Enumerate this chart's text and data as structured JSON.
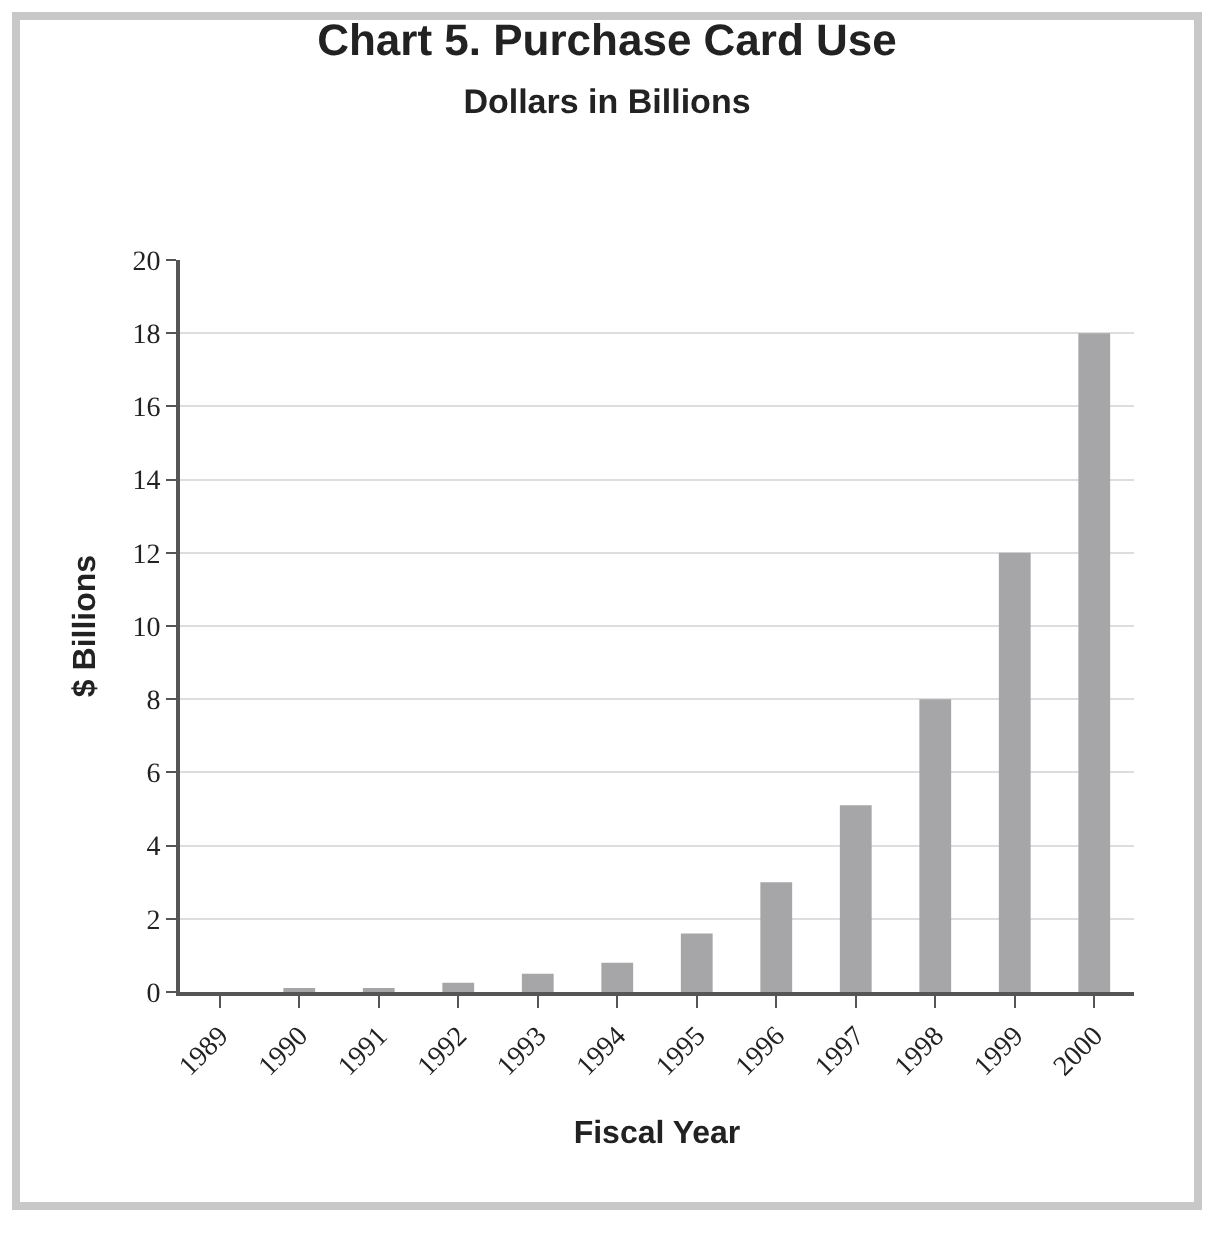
{
  "chart_data": {
    "type": "bar",
    "title": "Chart 5. Purchase Card Use",
    "subtitle": "Dollars in Billions",
    "xlabel": "Fiscal Year",
    "ylabel": "$ Billions",
    "categories": [
      "1989",
      "1990",
      "1991",
      "1992",
      "1993",
      "1994",
      "1995",
      "1996",
      "1997",
      "1998",
      "1999",
      "2000"
    ],
    "values": [
      0,
      0.1,
      0.1,
      0.25,
      0.5,
      0.8,
      1.6,
      3.0,
      5.1,
      8.0,
      12.0,
      18.0
    ],
    "color": "#a6a6a8",
    "ylim": [
      0,
      20
    ],
    "yticks": [
      0,
      2,
      4,
      6,
      8,
      10,
      12,
      14,
      16,
      18,
      20
    ],
    "grid": "y"
  }
}
